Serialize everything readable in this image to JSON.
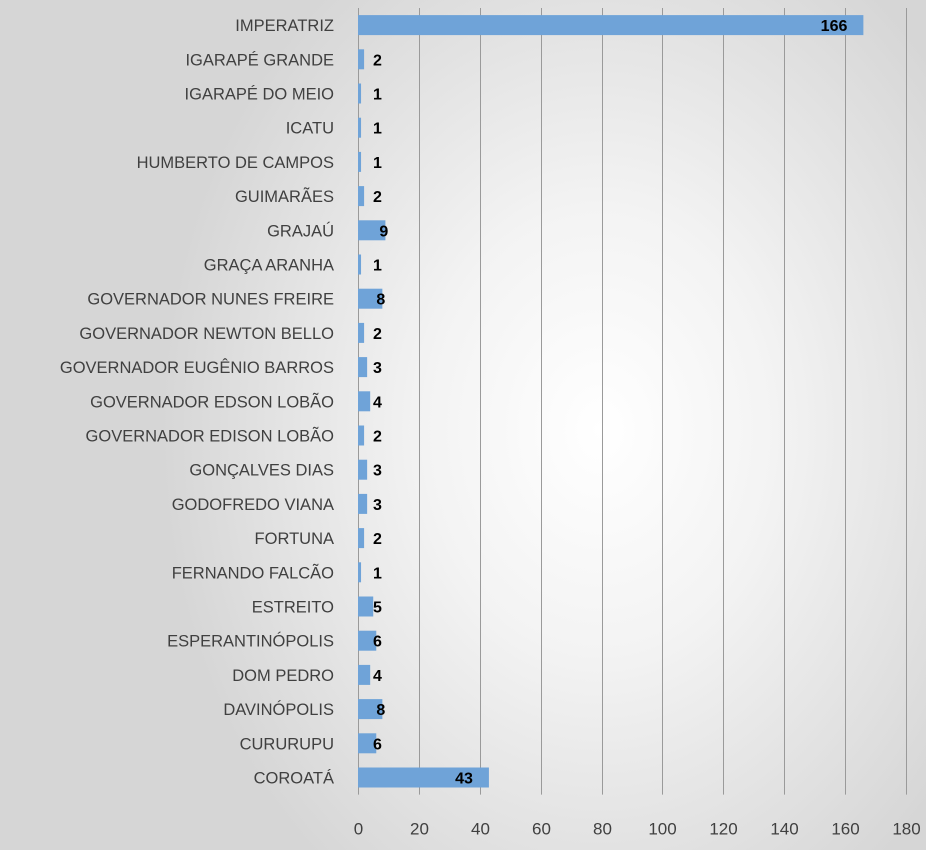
{
  "chart_data": {
    "type": "bar",
    "orientation": "horizontal",
    "title": "",
    "xlabel": "",
    "ylabel": "",
    "categories": [
      "IMPERATRIZ",
      "IGARAPÉ GRANDE",
      "IGARAPÉ DO MEIO",
      "ICATU",
      "HUMBERTO DE CAMPOS",
      "GUIMARÃES",
      "GRAJAÚ",
      "GRAÇA ARANHA",
      "GOVERNADOR NUNES FREIRE",
      "GOVERNADOR NEWTON BELLO",
      "GOVERNADOR EUGÊNIO BARROS",
      "GOVERNADOR EDSON LOBÃO",
      "GOVERNADOR EDISON LOBÃO",
      "GONÇALVES DIAS",
      "GODOFREDO VIANA",
      "FORTUNA",
      "FERNANDO FALCÃO",
      "ESTREITO",
      "ESPERANTINÓPOLIS",
      "DOM PEDRO",
      "DAVINÓPOLIS",
      "CURURUPU",
      "COROATÁ"
    ],
    "values": [
      166,
      2,
      1,
      1,
      1,
      2,
      9,
      1,
      8,
      2,
      3,
      4,
      2,
      3,
      3,
      2,
      1,
      5,
      6,
      4,
      8,
      6,
      43
    ],
    "xlim": [
      0,
      180
    ],
    "xticks": [
      "0",
      "20",
      "40",
      "60",
      "80",
      "100",
      "120",
      "140",
      "160",
      "180"
    ],
    "grid": true,
    "legend": "none",
    "bar_color": "#6fa3d8"
  }
}
